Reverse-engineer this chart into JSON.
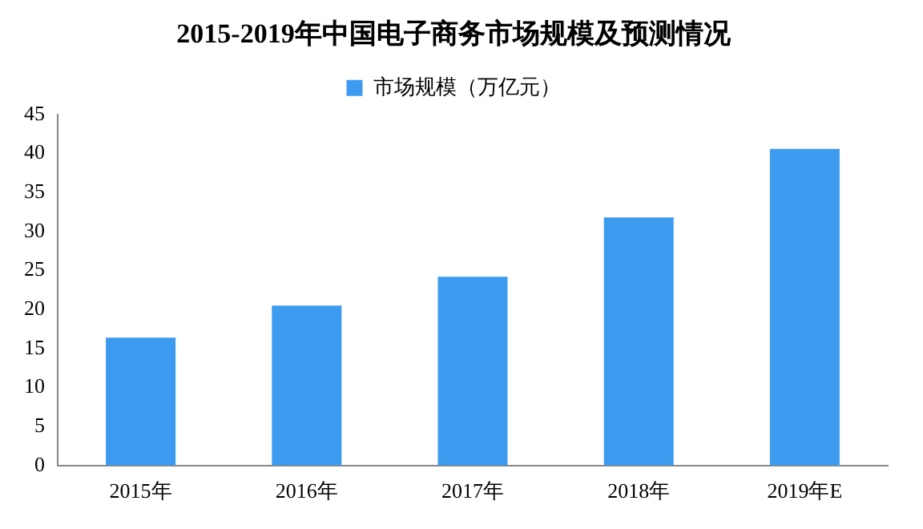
{
  "chart_data": {
    "type": "bar",
    "title": "2015-2019年中国电子商务市场规模及预测情况",
    "categories": [
      "2015年",
      "2016年",
      "2017年",
      "2018年",
      "2019年E"
    ],
    "series": [
      {
        "name": "市场规模（万亿元）",
        "color": "#3d9bef",
        "values": [
          16.4,
          20.5,
          24.2,
          31.8,
          40.6
        ]
      }
    ],
    "ylim": [
      0,
      45
    ],
    "yticks": [
      0,
      5,
      10,
      15,
      20,
      25,
      30,
      35,
      40,
      45
    ],
    "grid": false,
    "legend": "top"
  }
}
